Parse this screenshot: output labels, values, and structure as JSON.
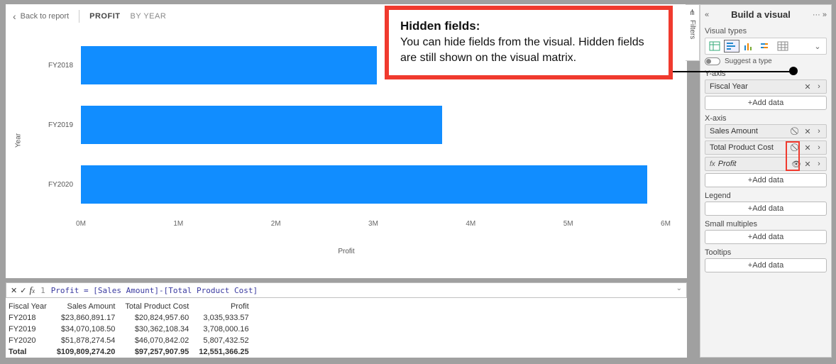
{
  "header": {
    "back": "Back to report",
    "crumb_active": "PROFIT",
    "crumb": "BY YEAR"
  },
  "chart": {
    "type": "bar-horizontal",
    "y_label": "Year",
    "x_label": "Profit",
    "x_min": 0,
    "x_max": 6000000,
    "x_ticks": [
      {
        "pos": 0,
        "label": "0M"
      },
      {
        "pos": 16.6667,
        "label": "1M"
      },
      {
        "pos": 33.3333,
        "label": "2M"
      },
      {
        "pos": 50.0,
        "label": "3M"
      },
      {
        "pos": 66.6667,
        "label": "4M"
      },
      {
        "pos": 83.3333,
        "label": "5M"
      },
      {
        "pos": 100.0,
        "label": "6M"
      }
    ],
    "bar_color": "#118dff",
    "background": "#ffffff",
    "categories": [
      {
        "label": "FY2018",
        "value": 3035933.57,
        "pct": 50.6
      },
      {
        "label": "FY2019",
        "value": 3708000.16,
        "pct": 61.8
      },
      {
        "label": "FY2020",
        "value": 5807432.52,
        "pct": 96.79
      }
    ]
  },
  "formula": {
    "line_no": "1",
    "text": "Profit = [Sales Amount]-[Total Product Cost]"
  },
  "table": {
    "columns": [
      "Fiscal Year",
      "Sales Amount",
      "Total Product Cost",
      "Profit"
    ],
    "rows": [
      [
        "FY2018",
        "$23,860,891.17",
        "$20,824,957.60",
        "3,035,933.57"
      ],
      [
        "FY2019",
        "$34,070,108.50",
        "$30,362,108.34",
        "3,708,000.16"
      ],
      [
        "FY2020",
        "$51,878,274.54",
        "$46,070,842.02",
        "5,807,432.52"
      ]
    ],
    "total": [
      "Total",
      "$109,809,274.20",
      "$97,257,907.95",
      "12,551,366.25"
    ]
  },
  "callout": {
    "title": "Hidden fields:",
    "body": "You can hide fields from the visual. Hidden fields are still shown on the visual matrix."
  },
  "filters_tab": "Filters",
  "panel": {
    "title": "Build a visual",
    "section_visual_types": "Visual types",
    "suggest": "Suggest a type",
    "wells": {
      "y_axis": {
        "label": "Y-axis",
        "pills": [
          {
            "name": "Fiscal Year",
            "hidden": false,
            "measure": false
          }
        ]
      },
      "x_axis": {
        "label": "X-axis",
        "pills": [
          {
            "name": "Sales Amount",
            "hidden": true,
            "measure": false
          },
          {
            "name": "Total Product Cost",
            "hidden": true,
            "measure": false
          },
          {
            "name": "Profit",
            "hidden": false,
            "measure": true
          }
        ]
      },
      "legend": {
        "label": "Legend"
      },
      "small_multiples": {
        "label": "Small multiples"
      },
      "tooltips": {
        "label": "Tooltips"
      }
    },
    "add_data": "+Add data"
  }
}
